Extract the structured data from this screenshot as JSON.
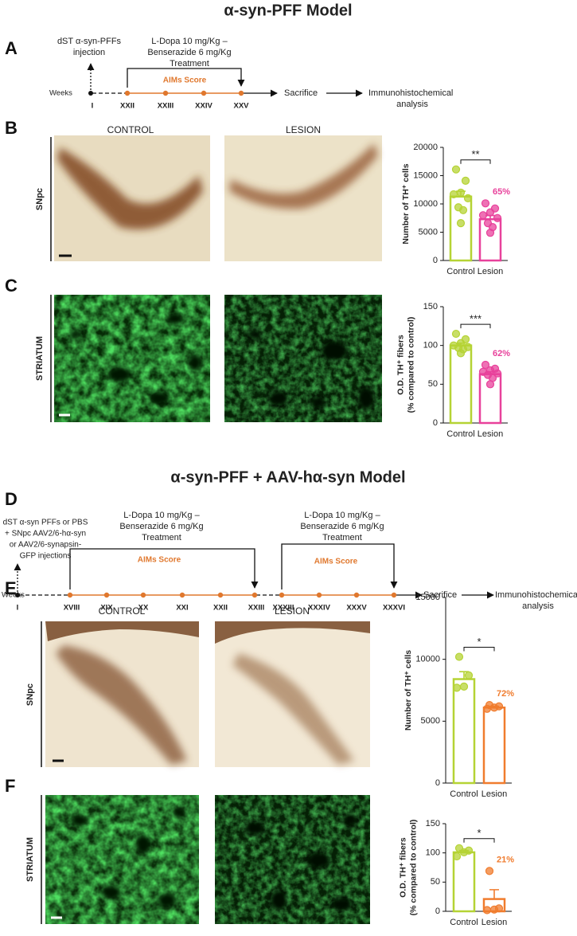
{
  "titles": [
    "α-syn-PFF Model",
    "α-syn-PFF + AAV-hα-syn Model"
  ],
  "panel_labels": [
    "A",
    "B",
    "C",
    "D",
    "E",
    "F"
  ],
  "row_labels": [
    "SNpc",
    "STRIATUM",
    "SNpc",
    "STRIATUM"
  ],
  "column_labels": [
    "CONTROL",
    "LESION",
    "CONTROL",
    "LESION"
  ],
  "timeline_a": {
    "injection": [
      "dST α-syn-PFFs",
      "injection"
    ],
    "treatment": [
      "L-Dopa 10 mg/Kg –",
      "Benserazide 6 mg/Kg",
      "Treatment"
    ],
    "score": "AIMs Score",
    "axis_label": "Weeks",
    "weeks": [
      "I",
      "XXII",
      "XXIII",
      "XXIV",
      "XXV"
    ],
    "sacrifice": "Sacrifice",
    "analysis": [
      "Immunohistochemical",
      "analysis"
    ]
  },
  "timeline_d": {
    "injection": [
      "dST α-syn PFFs or PBS",
      "+ SNpc AAV2/6-hα-syn",
      "or AAV2/6-synapsin-",
      "GFP injections"
    ],
    "treatment_1": [
      "L-Dopa 10 mg/Kg –",
      "Benserazide 6 mg/Kg",
      "Treatment"
    ],
    "treatment_2": [
      "L-Dopa 10 mg/Kg –",
      "Benserazide 6 mg/Kg",
      "Treatment"
    ],
    "score_1": "AIMs Score",
    "score_2": "AIMs Score",
    "axis_label": "Weeks",
    "weeks": [
      "I",
      "XVIII",
      "XIX",
      "XX",
      "XXI",
      "XXII",
      "XXIII",
      "XXXIII",
      "XXXIV",
      "XXXV",
      "XXXVI"
    ],
    "sacrifice": "Sacrifice",
    "analysis": [
      "Immunohistochemical",
      "analysis"
    ]
  },
  "chart_data": [
    {
      "type": "bar",
      "categories": [
        "Control",
        "Lesion"
      ],
      "ylabel": [
        "Number of TH⁺ cells"
      ],
      "values": [
        11300,
        7300
      ],
      "errors": [
        950,
        650
      ],
      "colors": [
        "#b5d334",
        "#e8419b"
      ],
      "points": [
        [
          16100,
          14100,
          12000,
          11700,
          11000,
          9400,
          8900,
          6600
        ],
        [
          10100,
          9200,
          8500,
          8000,
          7500,
          6600,
          5900,
          4900
        ]
      ],
      "ylim": [
        0,
        20000
      ],
      "yticks": [
        0,
        5000,
        10000,
        15000,
        20000
      ],
      "significance": "**",
      "percent": "65%"
    },
    {
      "type": "bar",
      "categories": [
        "Control",
        "Lesion"
      ],
      "ylabel": [
        "O.D. TH⁺ fibers",
        "(% compared to control)"
      ],
      "values": [
        100,
        63
      ],
      "errors": [
        3,
        3
      ],
      "colors": [
        "#b5d334",
        "#e8419b"
      ],
      "points": [
        [
          115,
          108,
          103,
          100,
          98,
          97,
          95,
          90
        ],
        [
          75,
          70,
          68,
          66,
          64,
          62,
          58,
          50
        ]
      ],
      "ylim": [
        0,
        150
      ],
      "yticks": [
        0,
        50,
        100,
        150
      ],
      "significance": "***",
      "percent": "62%"
    },
    {
      "type": "bar",
      "categories": [
        "Control",
        "Lesion"
      ],
      "ylabel": [
        "Number of TH⁺ cells"
      ],
      "values": [
        8400,
        6100
      ],
      "errors": [
        600,
        100
      ],
      "colors": [
        "#b5d334",
        "#f07c2e"
      ],
      "points": [
        [
          10200,
          8700,
          7800,
          7700
        ],
        [
          6300,
          6200,
          6100,
          6000
        ]
      ],
      "ylim": [
        0,
        15000
      ],
      "yticks": [
        0,
        5000,
        10000,
        15000
      ],
      "significance": "*",
      "percent": "72%"
    },
    {
      "type": "bar",
      "categories": [
        "Control",
        "Lesion"
      ],
      "ylabel": [
        "O.D. TH⁺ fibers",
        "(% compared to control)"
      ],
      "values": [
        101,
        21
      ],
      "errors": [
        3,
        16
      ],
      "colors": [
        "#b5d334",
        "#f07c2e"
      ],
      "points": [
        [
          108,
          104,
          101,
          94
        ],
        [
          69,
          5,
          3,
          2
        ]
      ],
      "ylim": [
        0,
        150
      ],
      "yticks": [
        0,
        50,
        100,
        150
      ],
      "significance": "*",
      "percent": "21%"
    }
  ]
}
